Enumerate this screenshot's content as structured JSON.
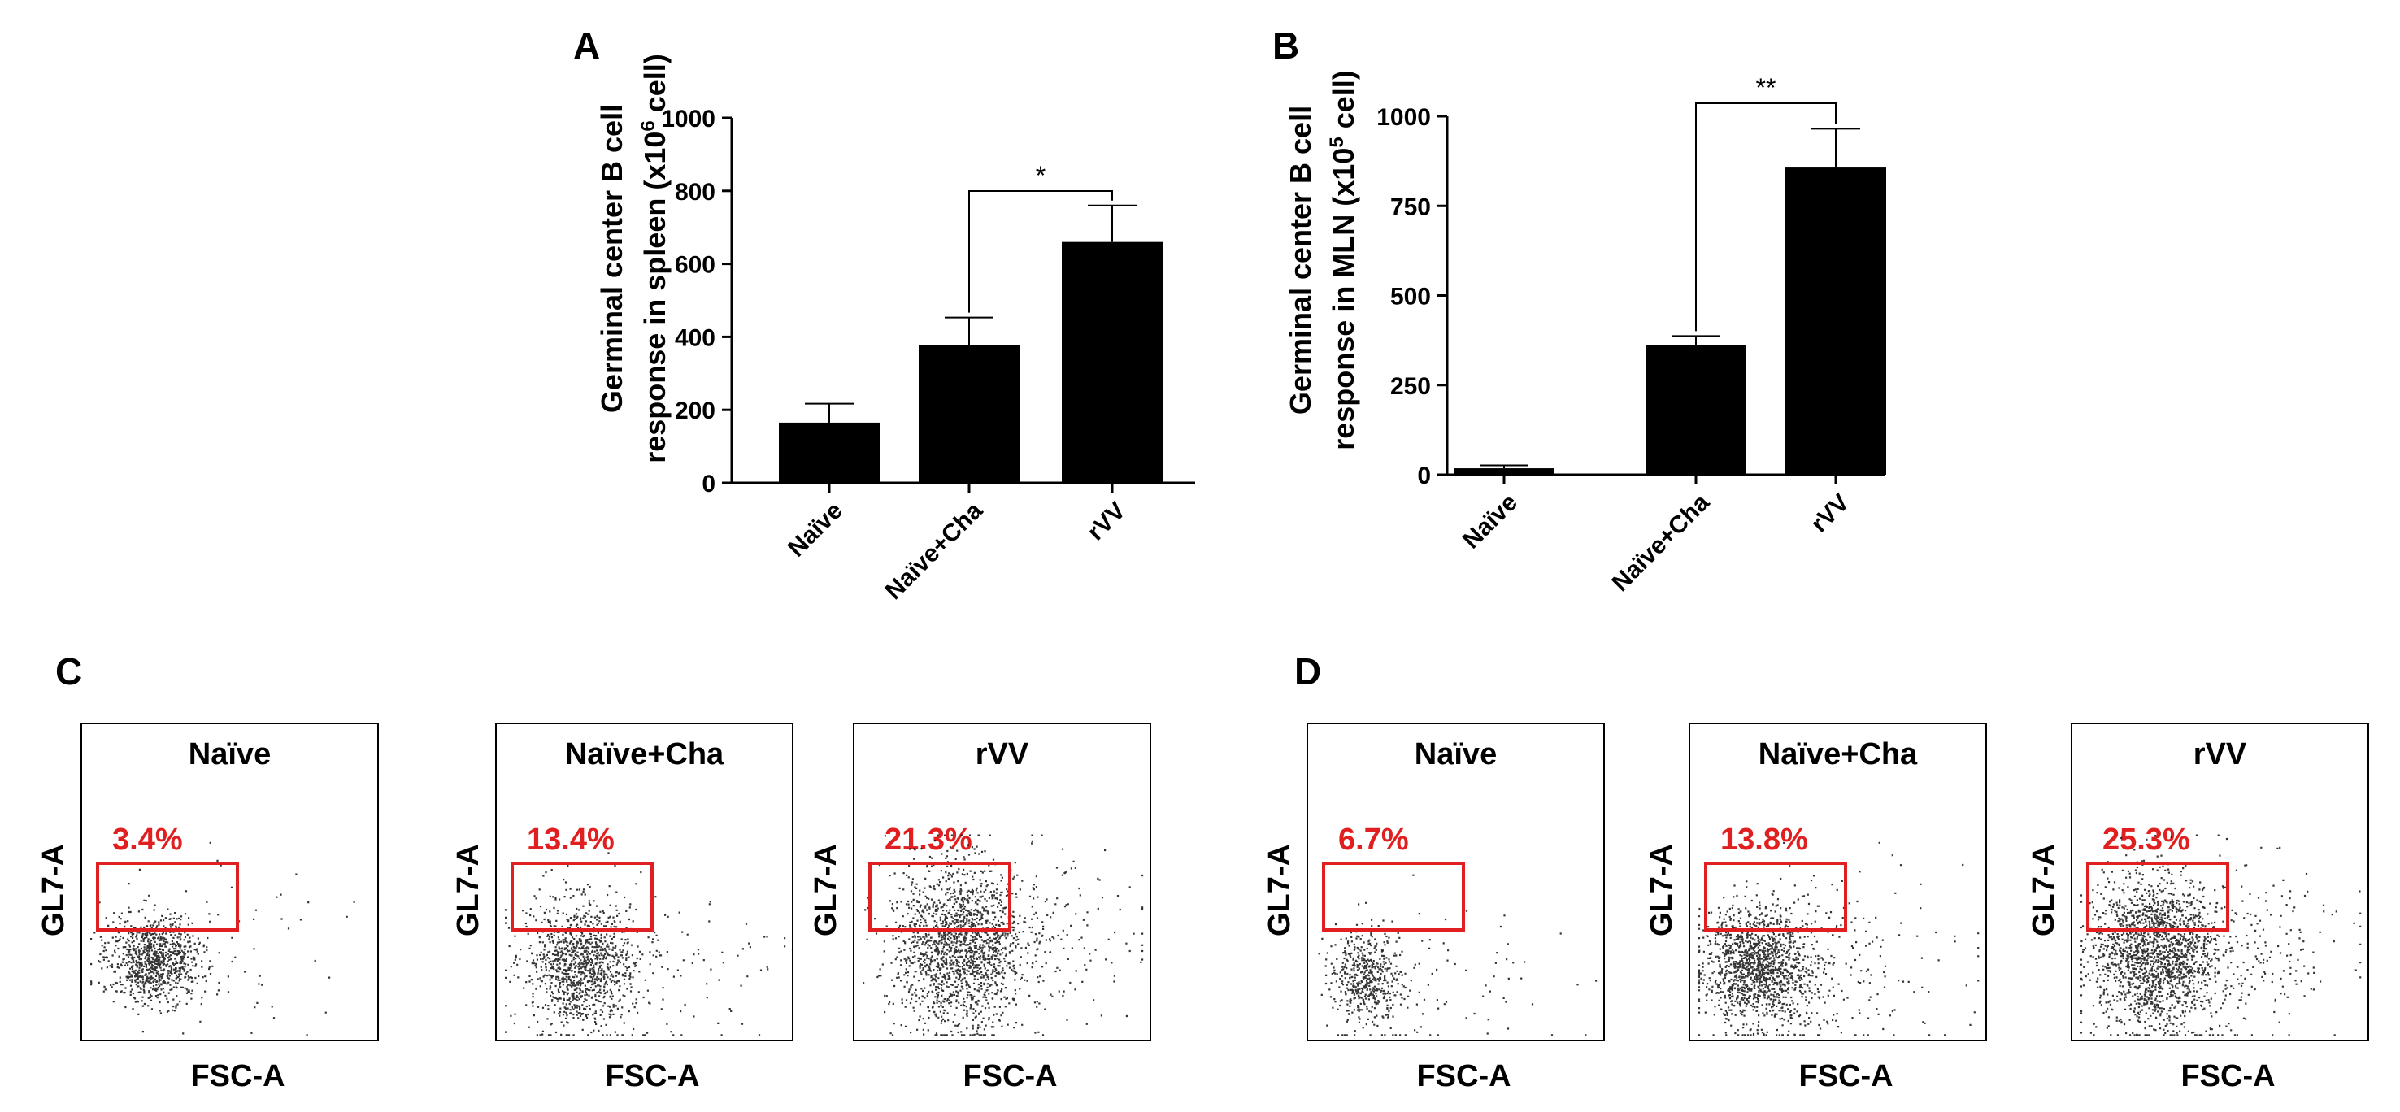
{
  "chart_data": [
    {
      "panel": "A",
      "type": "bar",
      "categories": [
        "Naïve",
        "Naïve+Cha",
        "rVV"
      ],
      "values": [
        165,
        378,
        660
      ],
      "errors": [
        52,
        75,
        100
      ],
      "ylabel_line1": "Germinal center B cell",
      "ylabel_line2_prefix": "response in spleen (x10",
      "ylabel_sup": "6",
      "ylabel_line2_suffix": " cell)",
      "yticks": [
        "0",
        "200",
        "400",
        "600",
        "800",
        "1000"
      ],
      "ylim": [
        0,
        1000
      ],
      "significance": {
        "between": [
          "Naïve+Cha",
          "rVV"
        ],
        "label": "*"
      }
    },
    {
      "panel": "B",
      "type": "bar",
      "categories": [
        "Naïve",
        "Naïve+Cha",
        "rVV"
      ],
      "values": [
        18,
        362,
        857
      ],
      "errors": [
        8,
        25,
        108
      ],
      "ylabel_line1": "Germinal center B cell",
      "ylabel_line2_prefix": "response in MLN (x10",
      "ylabel_sup": "5",
      "ylabel_line2_suffix": " cell)",
      "yticks": [
        "0",
        "250",
        "500",
        "750",
        "1000"
      ],
      "ylim": [
        0,
        1000
      ],
      "significance": {
        "between": [
          "Naïve+Cha",
          "rVV"
        ],
        "label": "**"
      }
    }
  ],
  "flow_panels": {
    "C": {
      "label": "C",
      "plots": [
        {
          "title": "Naïve",
          "percent": "3.4%",
          "ylabel": "GL7-A",
          "xlabel": "FSC-A"
        },
        {
          "title": "Naïve+Cha",
          "percent": "13.4%",
          "ylabel": "GL7-A",
          "xlabel": "FSC-A"
        },
        {
          "title": "rVV",
          "percent": "21.3%",
          "ylabel": "GL7-A",
          "xlabel": "FSC-A"
        }
      ]
    },
    "D": {
      "label": "D",
      "plots": [
        {
          "title": "Naïve",
          "percent": "6.7%",
          "ylabel": "GL7-A",
          "xlabel": "FSC-A"
        },
        {
          "title": "Naïve+Cha",
          "percent": "13.8%",
          "ylabel": "GL7-A",
          "xlabel": "FSC-A"
        },
        {
          "title": "rVV",
          "percent": "25.3%",
          "ylabel": "GL7-A",
          "xlabel": "FSC-A"
        }
      ]
    }
  },
  "colors": {
    "bar": "#000000",
    "gate": "#e02020",
    "percent": "#e02020",
    "dots": "#111111"
  }
}
